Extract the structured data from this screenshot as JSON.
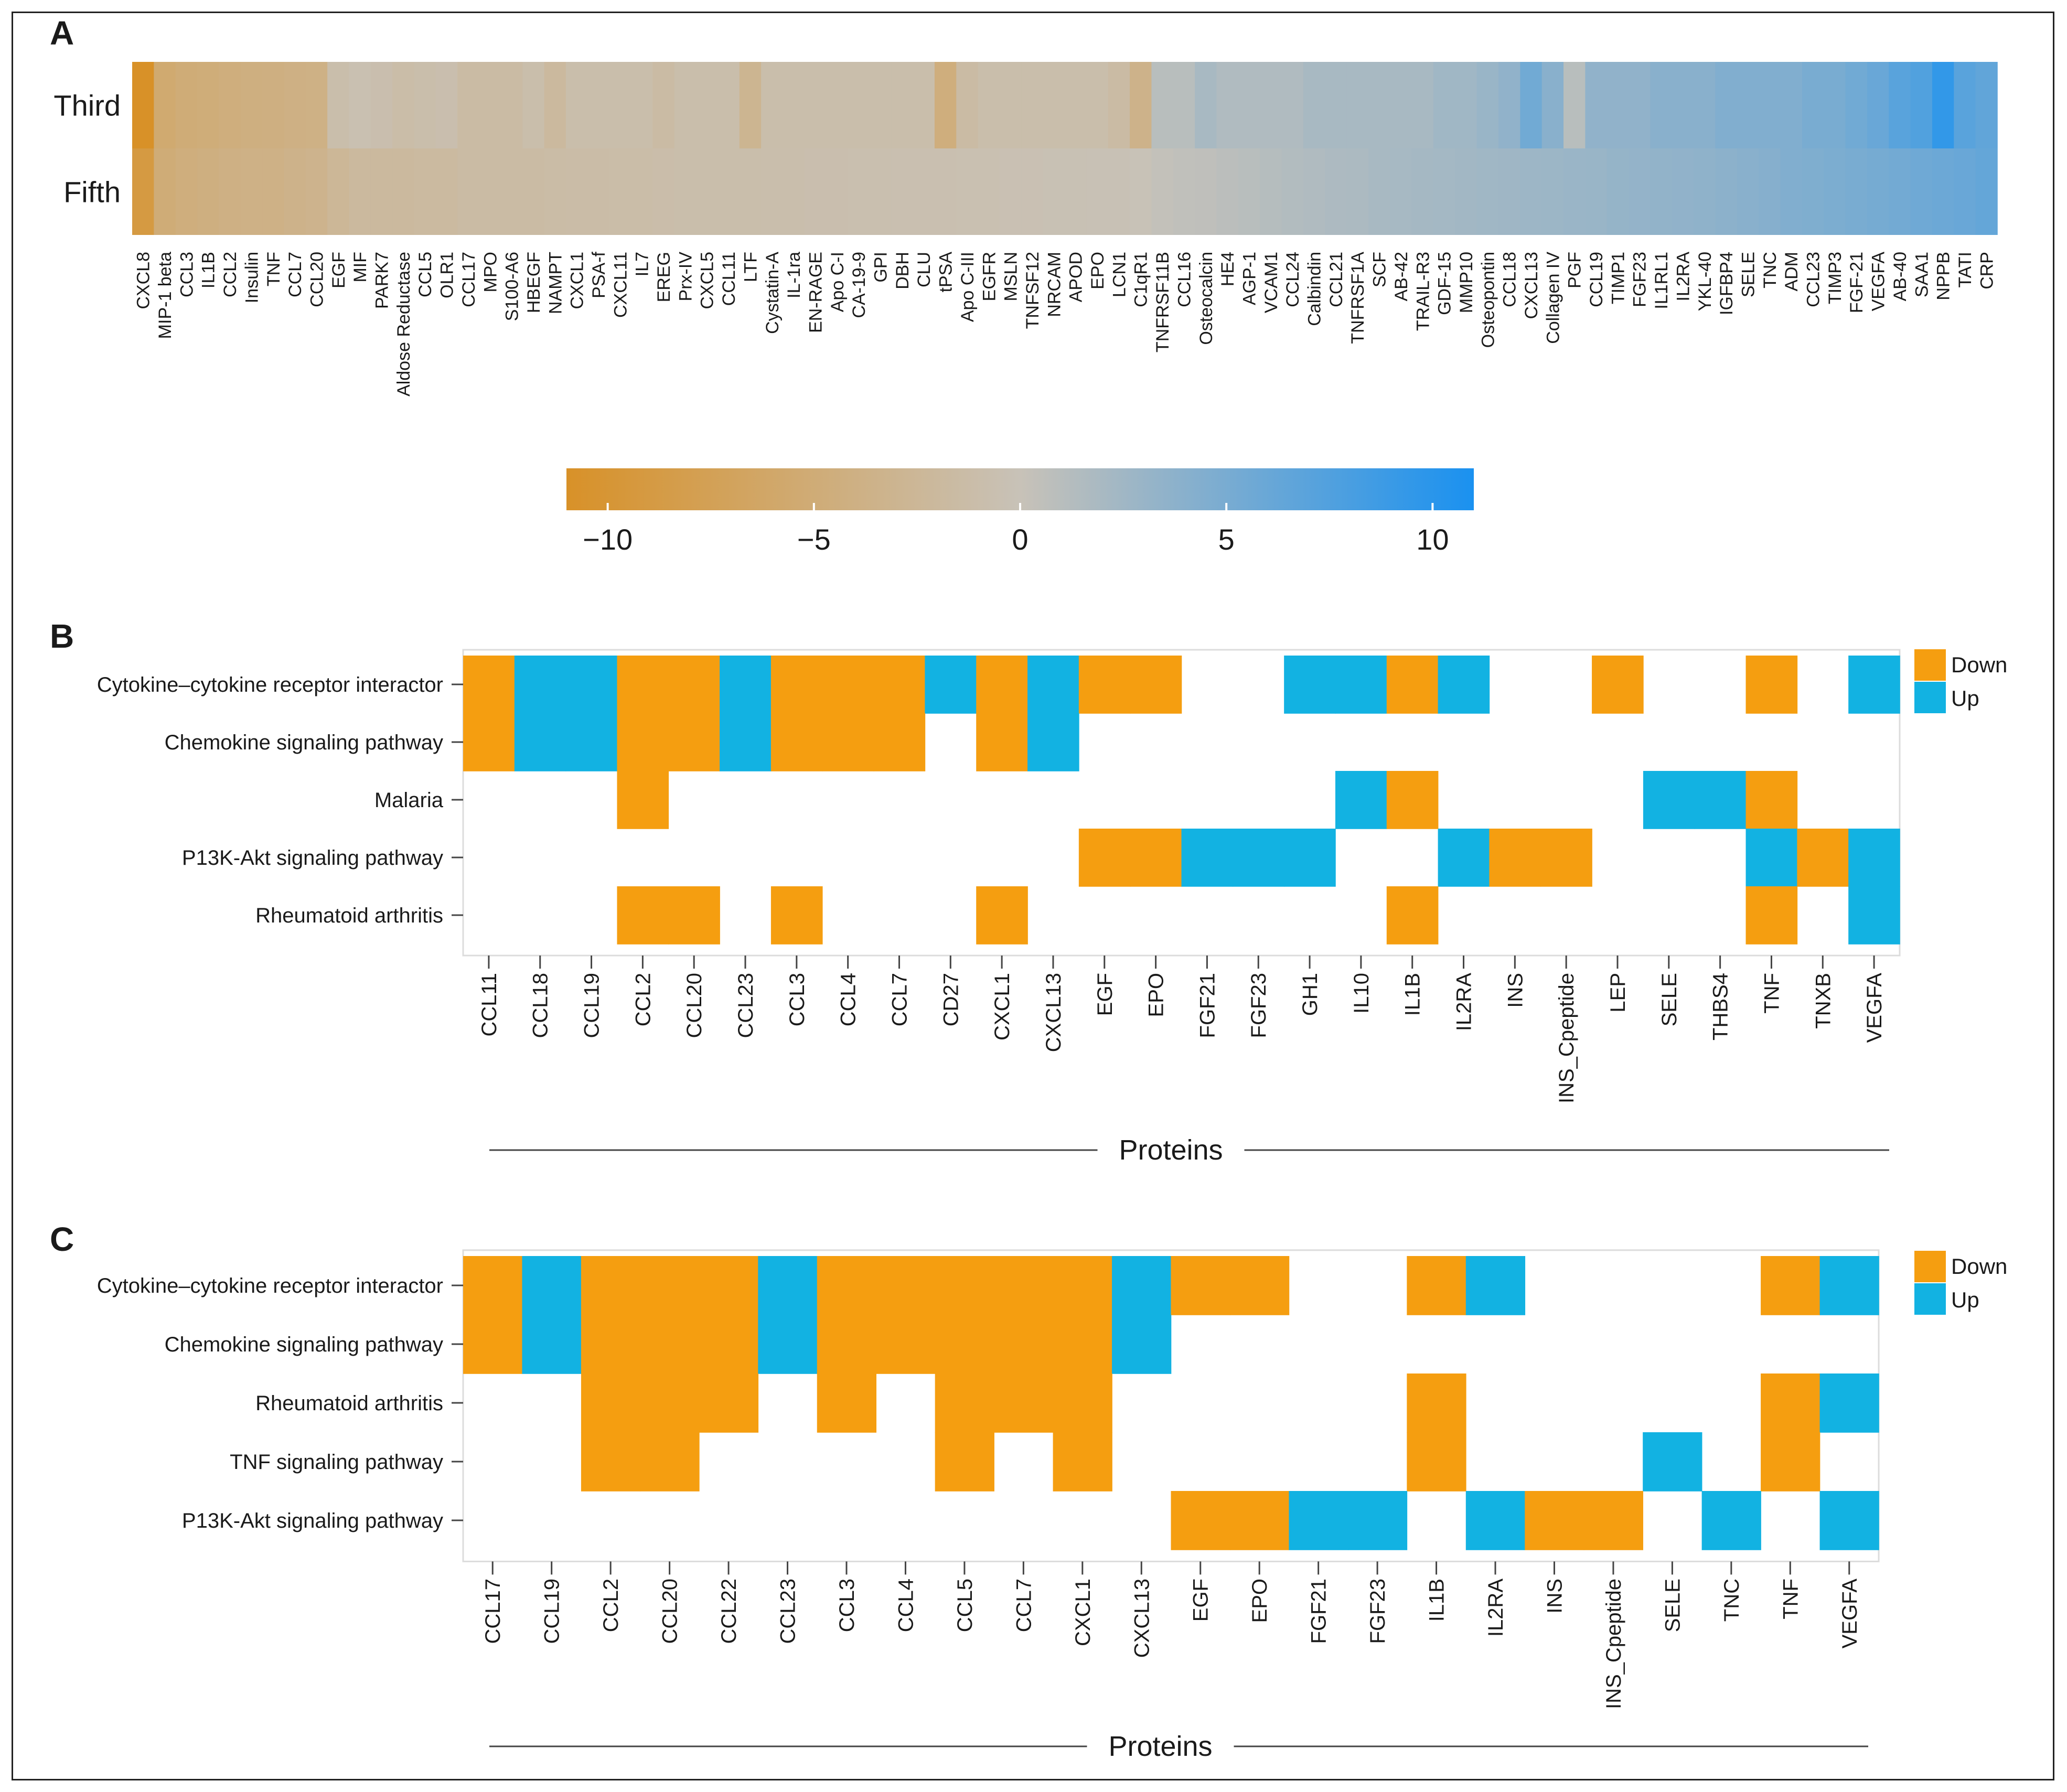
{
  "colors": {
    "down": "#F59E10",
    "up": "#12B2E2",
    "neg": "#D89128",
    "mid": "#C8C2B8",
    "pos": "#1A91F0",
    "grid": "#E8E8E8"
  },
  "chart_data": [
    {
      "panel": "A",
      "type": "heatmap",
      "rows": [
        "Third",
        "Fifth"
      ],
      "columns": [
        "CXCL8",
        "MIP-1 beta",
        "CCL3",
        "IL1B",
        "CCL2",
        "Insulin",
        "TNF",
        "CCL7",
        "CCL20",
        "EGF",
        "MIF",
        "PARK7",
        "Aldose Reductase",
        "CCL5",
        "OLR1",
        "CCL17",
        "MPO",
        "S100-A6",
        "HBEGF",
        "NAMPT",
        "CXCL1",
        "PSA-f",
        "CXCL11",
        "IL7",
        "EREG",
        "Prx-IV",
        "CXCL5",
        "CCL11",
        "LTF",
        "Cystatin-A",
        "IL-1ra",
        "EN-RAGE",
        "Apo C-I",
        "CA-19-9",
        "GPI",
        "DBH",
        "CLU",
        "tPSA",
        "Apo C-III",
        "EGFR",
        "MSLN",
        "TNFSF12",
        "NRCAM",
        "APOD",
        "EPO",
        "LCN1",
        "C1qR1",
        "TNFRSF11B",
        "CCL16",
        "Osteocalcin",
        "HE4",
        "AGP-1",
        "VCAM1",
        "CCL24",
        "Calbindin",
        "CCL21",
        "TNFRSF1A",
        "SCF",
        "AB-42",
        "TRAIL-R3",
        "GDF-15",
        "MMP10",
        "Osteopontin",
        "CCL18",
        "CXCL13",
        "Collagen IV",
        "PGF",
        "CCL19",
        "TIMP1",
        "FGF23",
        "IL1RL1",
        "IL2RA",
        "YKL-40",
        "IGFBP4",
        "SELE",
        "TNC",
        "ADM",
        "CCL23",
        "TIMP3",
        "FGF-21",
        "VEGFA",
        "AB-40",
        "SAA1",
        "NPPB",
        "TATI",
        "CRP"
      ],
      "values": [
        [
          -11.0,
          -5.5,
          -5.0,
          -4.8,
          -4.5,
          -4.3,
          -4.2,
          -4.0,
          -3.9,
          -1.0,
          -0.5,
          -0.8,
          -1.2,
          -1.0,
          -0.8,
          -1.5,
          -1.5,
          -1.5,
          -1.0,
          -2.0,
          -1.0,
          -1.0,
          -1.0,
          -1.0,
          -1.5,
          -1.0,
          -1.0,
          -1.0,
          -3.0,
          -1.0,
          -1.0,
          -1.0,
          -1.0,
          -1.0,
          -1.0,
          -1.0,
          -1.0,
          -4.5,
          -1.5,
          -1.0,
          -1.0,
          -1.0,
          -1.0,
          -1.0,
          -1.0,
          -1.5,
          -3.5,
          1.0,
          1.0,
          2.0,
          1.5,
          1.5,
          1.5,
          1.5,
          2.0,
          2.0,
          2.0,
          2.0,
          2.0,
          2.0,
          2.5,
          2.5,
          3.0,
          3.5,
          5.5,
          4.0,
          1.0,
          3.5,
          3.5,
          3.5,
          4.0,
          4.0,
          4.0,
          4.5,
          4.5,
          4.5,
          4.5,
          5.0,
          5.0,
          5.5,
          6.0,
          7.0,
          7.5,
          9.5,
          7.0,
          6.5
        ],
        [
          -9.0,
          -5.0,
          -4.5,
          -4.3,
          -4.0,
          -3.8,
          -3.8,
          -3.5,
          -3.3,
          -2.5,
          -2.0,
          -2.0,
          -2.0,
          -1.8,
          -1.8,
          -1.5,
          -1.5,
          -1.5,
          -1.5,
          -1.4,
          -1.3,
          -1.3,
          -1.2,
          -1.2,
          -1.1,
          -1.0,
          -1.0,
          -1.0,
          -1.0,
          -0.9,
          -0.9,
          -0.8,
          -0.8,
          -0.7,
          -0.7,
          -0.6,
          -0.6,
          -0.6,
          -0.5,
          -0.5,
          -0.4,
          -0.4,
          -0.3,
          -0.3,
          -0.2,
          -0.2,
          -0.1,
          0.3,
          0.5,
          0.6,
          0.8,
          1.0,
          1.2,
          1.4,
          1.5,
          1.7,
          1.8,
          2.0,
          2.1,
          2.2,
          2.3,
          2.4,
          2.5,
          2.6,
          2.7,
          2.8,
          2.9,
          3.0,
          3.2,
          3.3,
          3.4,
          3.5,
          3.6,
          3.8,
          4.0,
          4.2,
          4.5,
          4.6,
          4.8,
          5.0,
          5.2,
          5.4,
          5.6,
          5.8,
          6.0,
          6.3
        ]
      ],
      "colorbar": {
        "min": -11,
        "max": 11,
        "ticks": [
          "−10",
          "−5",
          "0",
          "5",
          "10"
        ],
        "tick_values": [
          -10,
          -5,
          0,
          5,
          10
        ]
      }
    },
    {
      "panel": "B",
      "type": "heatmap",
      "xlabel": "Proteins",
      "rows": [
        "Cytokine–cytokine receptor interactor",
        "Chemokine signaling pathway",
        "Malaria",
        "P13K-Akt signaling pathway",
        "Rheumatoid arthritis"
      ],
      "columns": [
        "CCL11",
        "CCL18",
        "CCL19",
        "CCL2",
        "CCL20",
        "CCL23",
        "CCL3",
        "CCL4",
        "CCL7",
        "CD27",
        "CXCL1",
        "CXCL13",
        "EGF",
        "EPO",
        "FGF21",
        "FGF23",
        "GH1",
        "IL10",
        "IL1B",
        "IL2RA",
        "INS",
        "INS_Cpeptide",
        "LEP",
        "SELE",
        "THBS4",
        "TNF",
        "TNXB",
        "VEGFA"
      ],
      "cells": [
        "DUUDDUDDDUDUDD..UUDU..D..D.U",
        "DUUDDUDDD.DU................",
        "...D.............UD....UUD..",
        "............DDUUU..UDD...UDU",
        "...DD.D...D.......D......D.U"
      ],
      "legend": {
        "down": "Down",
        "up": "Up"
      }
    },
    {
      "panel": "C",
      "type": "heatmap",
      "xlabel": "Proteins",
      "rows": [
        "Cytokine–cytokine receptor interactor",
        "Chemokine signaling pathway",
        "Rheumatoid arthritis",
        "TNF signaling pathway",
        "P13K-Akt signaling pathway"
      ],
      "columns": [
        "CCL17",
        "CCL19",
        "CCL2",
        "CCL20",
        "CCL22",
        "CCL23",
        "CCL3",
        "CCL4",
        "CCL5",
        "CCL7",
        "CXCL1",
        "CXCL13",
        "EGF",
        "EPO",
        "FGF21",
        "FGF23",
        "IL1B",
        "IL2RA",
        "INS",
        "INS_Cpeptide",
        "SELE",
        "TNC",
        "TNF",
        "VEGFA"
      ],
      "cells": [
        "DUDDDUDDDDDUDD..DU....DU",
        "DUDDDUDDDDDU............",
        "..DDD.D.DDD.....D.....DU",
        "..DD....D.D.....D...U.D.",
        "............DDUU.UDD.U.U"
      ],
      "legend": {
        "down": "Down",
        "up": "Up"
      }
    }
  ]
}
